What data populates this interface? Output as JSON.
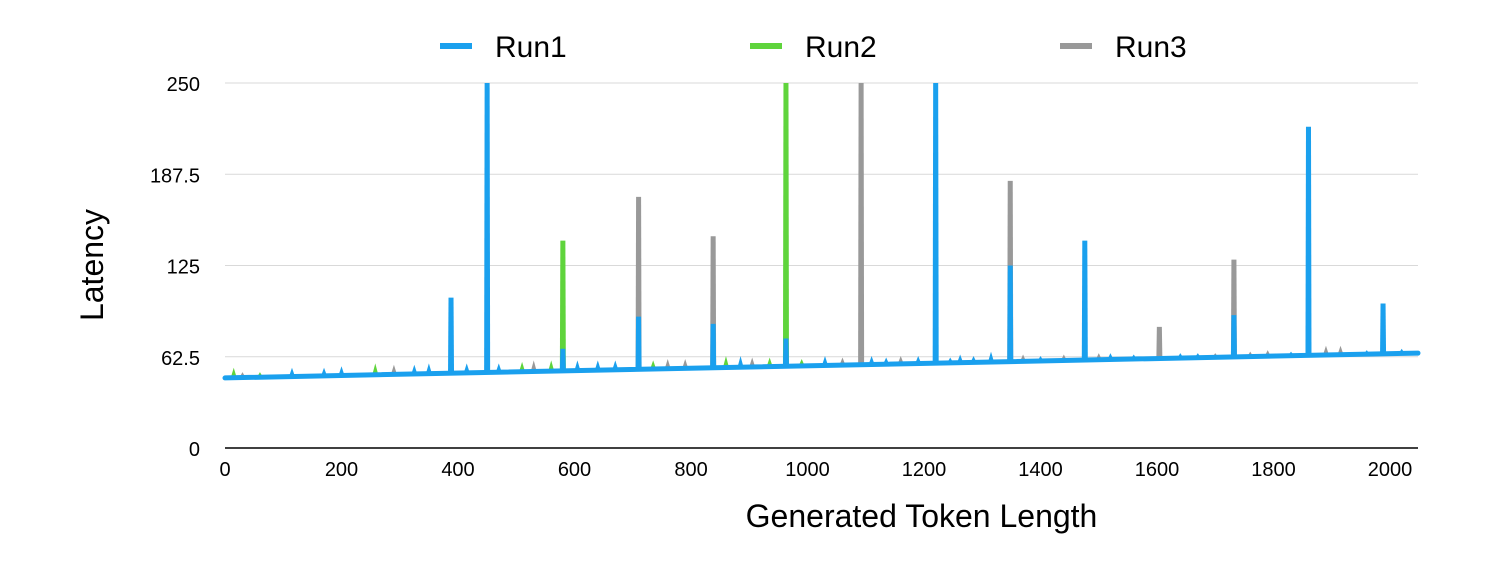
{
  "chart_data": {
    "type": "line",
    "xlabel": "Generated Token Length",
    "ylabel": "Latency",
    "xlim": [
      0,
      2048
    ],
    "ylim": [
      0,
      250
    ],
    "xticks": [
      0,
      200,
      400,
      600,
      800,
      1000,
      1200,
      1400,
      1600,
      1800,
      2000
    ],
    "xtick_labels": [
      "0",
      "200",
      "400",
      "600",
      "800",
      "1000",
      "1200",
      "1400",
      "1600",
      "1800",
      "2000"
    ],
    "yticks": [
      0,
      62.5,
      125,
      187.5,
      250
    ],
    "ytick_labels": [
      "0",
      "62.5",
      "125",
      "187.5",
      "250"
    ],
    "grid": "horizontal",
    "legend_position": "top",
    "colors": {
      "Run1": "#1aa0ee",
      "Run2": "#5fd43c",
      "Run3": "#999999"
    },
    "baseline": {
      "x": [
        0,
        2048
      ],
      "y": [
        48,
        65
      ]
    },
    "series": [
      {
        "name": "Run1",
        "color": "#1aa0ee",
        "spikes": [
          {
            "x": 388,
            "y": 103
          },
          {
            "x": 450,
            "y": 250
          },
          {
            "x": 580,
            "y": 68
          },
          {
            "x": 710,
            "y": 90
          },
          {
            "x": 838,
            "y": 85
          },
          {
            "x": 963,
            "y": 75
          },
          {
            "x": 1220,
            "y": 250
          },
          {
            "x": 1348,
            "y": 125
          },
          {
            "x": 1476,
            "y": 142
          },
          {
            "x": 1732,
            "y": 91
          },
          {
            "x": 1860,
            "y": 220
          },
          {
            "x": 1988,
            "y": 99
          }
        ]
      },
      {
        "name": "Run2",
        "color": "#5fd43c",
        "spikes": [
          {
            "x": 580,
            "y": 142
          },
          {
            "x": 963,
            "y": 250
          }
        ]
      },
      {
        "name": "Run3",
        "color": "#999999",
        "spikes": [
          {
            "x": 710,
            "y": 172
          },
          {
            "x": 838,
            "y": 145
          },
          {
            "x": 1092,
            "y": 250
          },
          {
            "x": 1348,
            "y": 183
          },
          {
            "x": 1604,
            "y": 83
          },
          {
            "x": 1732,
            "y": 129
          }
        ]
      }
    ]
  }
}
